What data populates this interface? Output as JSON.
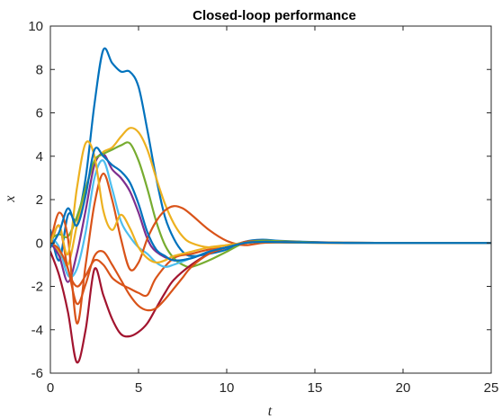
{
  "chart_data": {
    "type": "line",
    "title": "Closed-loop performance",
    "xlabel": "t",
    "ylabel": "x",
    "xlim": [
      0,
      25
    ],
    "ylim": [
      -6,
      10
    ],
    "xticks": [
      0,
      5,
      10,
      15,
      20,
      25
    ],
    "yticks": [
      -6,
      -4,
      -2,
      0,
      2,
      4,
      6,
      8,
      10
    ],
    "grid": false,
    "box": true,
    "series": [
      {
        "color": "#0072BD",
        "x": [
          0,
          0.5,
          1,
          1.5,
          2,
          2.5,
          3,
          3.5,
          4,
          4.5,
          5,
          5.5,
          6,
          6.5,
          7,
          7.5,
          8,
          9,
          10,
          11,
          12,
          13,
          15,
          17,
          20,
          25
        ],
        "y": [
          0.6,
          -0.8,
          1.3,
          1.1,
          3.0,
          6.4,
          8.9,
          8.3,
          7.9,
          7.9,
          7.2,
          5.2,
          3.0,
          1.2,
          0.2,
          -0.4,
          -0.6,
          -0.5,
          -0.3,
          0.05,
          0.15,
          0.1,
          0.04,
          0.01,
          0,
          0
        ]
      },
      {
        "color": "#D95319",
        "x": [
          0,
          0.5,
          1,
          1.5,
          2,
          2.5,
          3,
          3.5,
          4,
          4.5,
          5,
          5.5,
          6,
          7,
          8,
          9,
          10,
          11,
          12,
          13,
          15,
          17,
          20,
          25
        ],
        "y": [
          -0.2,
          0.8,
          -1.2,
          -2.0,
          -1.5,
          -0.8,
          -1.0,
          -1.6,
          -1.9,
          -2.1,
          -2.3,
          -2.4,
          -1.6,
          -0.7,
          -0.5,
          -0.3,
          -0.2,
          0.05,
          0.1,
          0.08,
          0.03,
          0.01,
          0,
          0
        ]
      },
      {
        "color": "#EDB120",
        "x": [
          0,
          0.5,
          1,
          1.5,
          2,
          2.5,
          3,
          3.5,
          4,
          4.5,
          5,
          5.5,
          6,
          6.5,
          7,
          7.5,
          8,
          9,
          10,
          11,
          12,
          13,
          15,
          17,
          20,
          25
        ],
        "y": [
          0.1,
          -0.4,
          -1.0,
          0.8,
          2.5,
          3.7,
          4.2,
          4.4,
          4.9,
          5.3,
          5.1,
          4.3,
          3.0,
          1.8,
          0.9,
          0.3,
          0,
          -0.2,
          -0.1,
          0,
          0.05,
          0.04,
          0.02,
          0,
          0,
          0
        ]
      },
      {
        "color": "#7E2F8E",
        "x": [
          0,
          0.5,
          1,
          1.5,
          2,
          2.5,
          3,
          3.5,
          4,
          4.5,
          5,
          5.5,
          6,
          7,
          8,
          9,
          10,
          11,
          12,
          13,
          15,
          17,
          20,
          25
        ],
        "y": [
          0.0,
          -0.6,
          -1.8,
          -0.5,
          1.5,
          3.6,
          4.1,
          3.4,
          3.0,
          2.4,
          1.4,
          0.2,
          -0.4,
          -0.8,
          -0.7,
          -0.4,
          -0.2,
          0,
          0.05,
          0.05,
          0.02,
          0.01,
          0,
          0
        ]
      },
      {
        "color": "#77AC30",
        "x": [
          0,
          0.5,
          1,
          1.5,
          2,
          2.5,
          3,
          3.5,
          4,
          4.5,
          5,
          5.5,
          6,
          6.5,
          7,
          7.5,
          8,
          9,
          10,
          11,
          12,
          13,
          15,
          17,
          20,
          25
        ],
        "y": [
          0.2,
          0.4,
          0.3,
          1.2,
          2.5,
          3.8,
          4.1,
          4.3,
          4.5,
          4.6,
          3.8,
          2.5,
          1.0,
          -0.1,
          -0.7,
          -1.0,
          -1.1,
          -0.8,
          -0.4,
          0,
          0.1,
          0.08,
          0.03,
          0.01,
          0,
          0
        ]
      },
      {
        "color": "#4DBEEE",
        "x": [
          0,
          0.5,
          1,
          1.5,
          2,
          2.5,
          3,
          3.5,
          4,
          4.5,
          5,
          5.5,
          6,
          6.5,
          7,
          8,
          9,
          10,
          11,
          12,
          13,
          15,
          17,
          20,
          25
        ],
        "y": [
          0.3,
          -0.2,
          -1.5,
          -1.2,
          0.5,
          3.0,
          3.8,
          2.5,
          1.0,
          0.3,
          -0.2,
          -0.5,
          -0.9,
          -1.1,
          -1.0,
          -0.7,
          -0.4,
          -0.2,
          0,
          0.05,
          0.04,
          0.02,
          0,
          0,
          0
        ]
      },
      {
        "color": "#A2142F",
        "x": [
          0,
          0.5,
          1,
          1.5,
          2,
          2.5,
          3,
          3.5,
          4,
          4.5,
          5,
          5.5,
          6,
          6.5,
          7,
          8,
          9,
          10,
          11,
          12,
          13,
          15,
          17,
          20,
          25
        ],
        "y": [
          -0.4,
          -1.5,
          -3.2,
          -5.5,
          -4.0,
          -1.2,
          -2.4,
          -3.5,
          -4.2,
          -4.3,
          -4.1,
          -3.7,
          -3.0,
          -2.3,
          -1.7,
          -1.0,
          -0.5,
          -0.2,
          0,
          0.05,
          0.04,
          0.02,
          0,
          0,
          0
        ]
      },
      {
        "color": "#D95319",
        "x": [
          0,
          0.5,
          1,
          1.5,
          2,
          2.5,
          3,
          3.5,
          4,
          4.5,
          5,
          5.5,
          6,
          6.5,
          7,
          7.5,
          8,
          9,
          10,
          11,
          12,
          13,
          15,
          17,
          20,
          25
        ],
        "y": [
          0.0,
          -0.3,
          -1.2,
          -2.8,
          -1.9,
          -0.6,
          -0.4,
          -1.0,
          -1.7,
          -2.4,
          -2.9,
          -3.1,
          -3.0,
          -2.6,
          -2.1,
          -1.6,
          -1.1,
          -0.5,
          -0.2,
          0,
          0.05,
          0.04,
          0.02,
          0,
          0,
          0
        ]
      },
      {
        "color": "#D95319",
        "x": [
          0,
          0.5,
          1,
          1.5,
          2,
          2.5,
          3,
          3.5,
          4,
          4.5,
          5,
          5.5,
          6,
          6.5,
          7,
          7.5,
          8,
          9,
          10,
          11,
          12,
          13,
          15,
          17,
          20,
          25
        ],
        "y": [
          0.0,
          1.4,
          0.2,
          -3.7,
          -1.0,
          1.8,
          3.2,
          2.0,
          0.2,
          -1.2,
          -0.9,
          0.2,
          1.0,
          1.5,
          1.7,
          1.6,
          1.3,
          0.6,
          0.1,
          -0.1,
          0,
          0.02,
          0.01,
          0,
          0,
          0
        ]
      },
      {
        "color": "#EDB120",
        "x": [
          0,
          0.5,
          1,
          1.5,
          2,
          2.5,
          3,
          3.5,
          4,
          4.5,
          5,
          5.5,
          6,
          6.5,
          7,
          8,
          9,
          10,
          11,
          12,
          13,
          15,
          17,
          20,
          25
        ],
        "y": [
          0.0,
          0.8,
          -0.5,
          2.5,
          4.6,
          4.0,
          1.5,
          0.6,
          1.3,
          0.7,
          -0.2,
          -0.7,
          -0.9,
          -0.8,
          -0.6,
          -0.4,
          -0.2,
          -0.1,
          0,
          0.05,
          0.03,
          0.01,
          0,
          0,
          0
        ]
      },
      {
        "color": "#0072BD",
        "x": [
          0,
          0.5,
          1,
          1.5,
          2,
          2.5,
          3,
          3.5,
          4,
          4.5,
          5,
          5.5,
          6,
          6.5,
          7,
          8,
          9,
          10,
          11,
          12,
          13,
          15,
          17,
          20,
          25
        ],
        "y": [
          -0.2,
          0.5,
          1.6,
          0.8,
          2.2,
          4.3,
          4.0,
          3.6,
          3.3,
          2.8,
          1.8,
          0.5,
          -0.3,
          -0.6,
          -0.8,
          -0.7,
          -0.4,
          -0.2,
          0,
          0.05,
          0.04,
          0.02,
          0,
          0,
          0
        ]
      }
    ]
  }
}
